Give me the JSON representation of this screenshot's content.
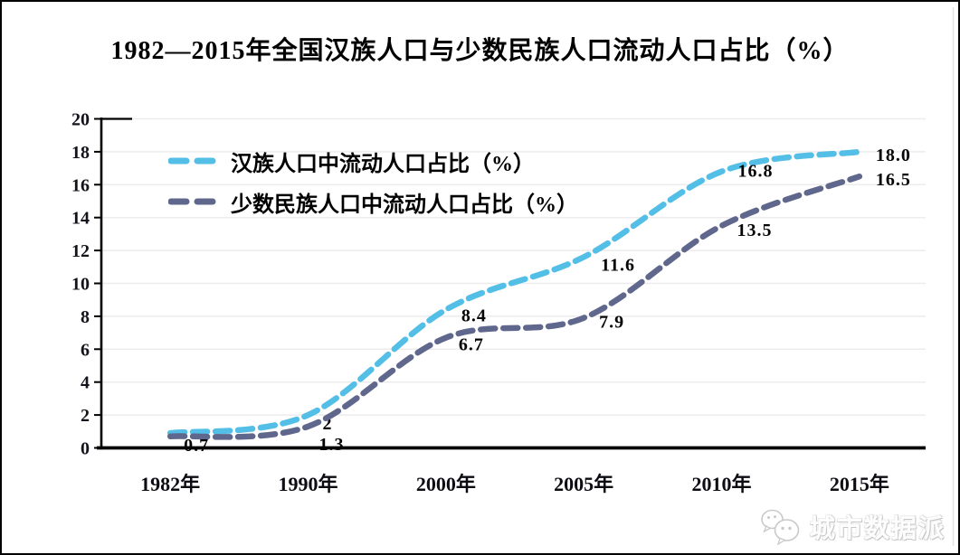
{
  "chart_data": {
    "type": "line",
    "title": "1982—2015年全国汉族人口与少数民族人口流动人口占比（%）",
    "categories": [
      "1982年",
      "1990年",
      "2000年",
      "2005年",
      "2010年",
      "2015年"
    ],
    "series": [
      {
        "name": "汉族人口中流动人口占比（%）",
        "color": "#53BEE6",
        "line_style": "dashed",
        "values": [
          0.9,
          2,
          8.4,
          11.6,
          16.8,
          18.0
        ],
        "point_labels": [
          "",
          "2",
          "8.4",
          "11.6",
          "16.8",
          "18.0"
        ]
      },
      {
        "name": "少数民族人口中流动人口占比（%）",
        "color": "#60678D",
        "line_style": "dashed",
        "values": [
          0.7,
          1.3,
          6.7,
          7.9,
          13.5,
          16.5
        ],
        "point_labels": [
          "0.7",
          "1.3",
          "6.7",
          "7.9",
          "13.5",
          "16.5"
        ]
      }
    ],
    "ylim": [
      0,
      20
    ],
    "yticks": [
      0,
      2,
      4,
      6,
      8,
      10,
      12,
      14,
      16,
      18,
      20
    ],
    "grid": "horizontal",
    "gridline_color": "#ECECEC",
    "axis_color": "#000000",
    "legend_position": "top-left-inside"
  },
  "watermark": {
    "icon": "wechat-icon",
    "label": "城市数据派"
  }
}
